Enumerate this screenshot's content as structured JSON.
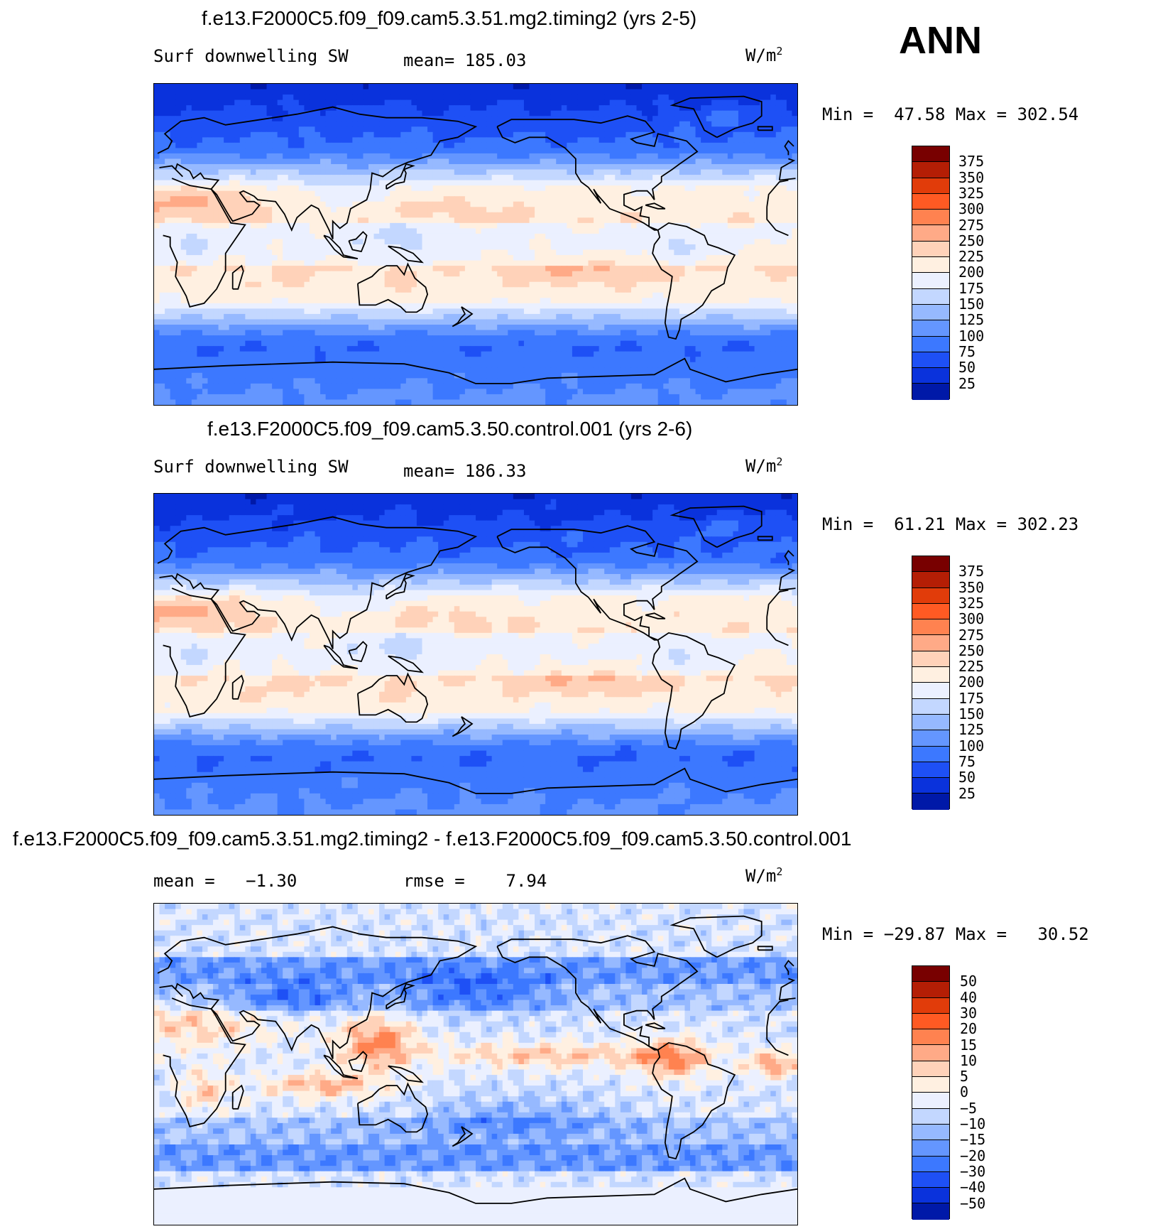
{
  "season": "ANN",
  "units": "W/m",
  "units_exp": "2",
  "colors": {
    "abs": [
      "#00007d",
      "#0019a8",
      "#0a32dc",
      "#1e50f5",
      "#3c78ff",
      "#6496ff",
      "#96b9ff",
      "#c3d7ff",
      "#ebf0ff",
      "#fff0e1",
      "#ffd2b9",
      "#ffaa87",
      "#ff8250",
      "#ff5a23",
      "#e13c0a",
      "#b41e05",
      "#780000"
    ],
    "diff": [
      "#00007d",
      "#0019a8",
      "#0a32dc",
      "#1e50f5",
      "#3c78ff",
      "#6496ff",
      "#96b9ff",
      "#c3d7ff",
      "#ebf0ff",
      "#fff0e1",
      "#ffd2b9",
      "#ffaa87",
      "#ff8250",
      "#ff5a23",
      "#e13c0a",
      "#b41e05",
      "#780000"
    ]
  },
  "panels": [
    {
      "title": "f.e13.F2000C5.f09_f09.cam5.3.51.mg2.timing2 (yrs 2-5)",
      "variable": "Surf downwelling SW",
      "mean_label": "mean=",
      "mean_value": "185.03",
      "min_label": "Min =",
      "min_value": "47.58",
      "max_label": "Max =",
      "max_value": "302.54"
    },
    {
      "title": "f.e13.F2000C5.f09_f09.cam5.3.50.control.001 (yrs 2-6)",
      "variable": "Surf downwelling SW",
      "mean_label": "mean=",
      "mean_value": "186.33",
      "min_label": "Min =",
      "min_value": "61.21",
      "max_label": "Max =",
      "max_value": "302.23"
    },
    {
      "title": "f.e13.F2000C5.f09_f09.cam5.3.51.mg2.timing2 - f.e13.F2000C5.f09_f09.cam5.3.50.control.001",
      "mean_label": "mean =",
      "mean_value": "−1.30",
      "rmse_label": "rmse =",
      "rmse_value": "7.94",
      "min_label": "Min =",
      "min_value": "−29.87",
      "max_label": "Max =",
      "max_value": "30.52"
    }
  ],
  "chart_data": [
    {
      "type": "heatmap",
      "title": "f.e13.F2000C5.f09_f09.cam5.3.51.mg2.timing2 (yrs 2-5)",
      "variable": "Surf downwelling SW",
      "units": "W/m2",
      "mean": 185.03,
      "min": 47.58,
      "max": 302.54,
      "colorbar_levels": [
        375,
        350,
        325,
        300,
        275,
        250,
        225,
        200,
        175,
        150,
        125,
        100,
        75,
        50,
        25
      ],
      "projection": "cylindrical equidistant, centered 180"
    },
    {
      "type": "heatmap",
      "title": "f.e13.F2000C5.f09_f09.cam5.3.50.control.001 (yrs 2-6)",
      "variable": "Surf downwelling SW",
      "units": "W/m2",
      "mean": 186.33,
      "min": 61.21,
      "max": 302.23,
      "colorbar_levels": [
        375,
        350,
        325,
        300,
        275,
        250,
        225,
        200,
        175,
        150,
        125,
        100,
        75,
        50,
        25
      ],
      "projection": "cylindrical equidistant, centered 180"
    },
    {
      "type": "heatmap",
      "title": "f.e13.F2000C5.f09_f09.cam5.3.51.mg2.timing2 - f.e13.F2000C5.f09_f09.cam5.3.50.control.001",
      "units": "W/m2",
      "mean": -1.3,
      "rmse": 7.94,
      "min": -29.87,
      "max": 30.52,
      "colorbar_levels": [
        50,
        40,
        30,
        20,
        15,
        10,
        5,
        0,
        -5,
        -10,
        -15,
        -20,
        -30,
        -40,
        -50
      ],
      "projection": "cylindrical equidistant, centered 180"
    }
  ],
  "colorbar_labels": {
    "abs": [
      "375",
      "350",
      "325",
      "300",
      "275",
      "250",
      "225",
      "200",
      "175",
      "150",
      "125",
      "100",
      "75",
      "50",
      "25"
    ],
    "diff": [
      "50",
      "40",
      "30",
      "20",
      "15",
      "10",
      "5",
      "0",
      "−5",
      "−10",
      "−15",
      "−20",
      "−30",
      "−40",
      "−50"
    ]
  }
}
